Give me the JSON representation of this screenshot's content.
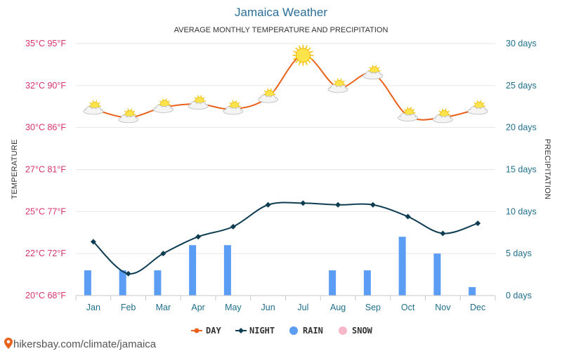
{
  "page": {
    "source_url": "hikersbay.com/climate/jamaica"
  },
  "colors": {
    "day": "#e8611a",
    "night": "#0e3d52",
    "rain": "#5b9cf5",
    "snow": "#f7b7c8",
    "left_axis": "#d6336c",
    "right_axis": "#1f6f8b",
    "title": "#2a6f97"
  },
  "icons": {
    "weather": "sun-behind-cloud-icon",
    "hot": "sun-icon",
    "source": "location-pin-icon"
  },
  "chart_data": {
    "type": "line",
    "title": "Jamaica Weather",
    "subtitle": "AVERAGE MONTHLY TEMPERATURE AND PRECIPITATION",
    "ylabel_left": "TEMPERATURE",
    "ylabel_right": "PRECIPITATION",
    "categories": [
      "Jan",
      "Feb",
      "Mar",
      "Apr",
      "May",
      "Jun",
      "Jul",
      "Aug",
      "Sep",
      "Oct",
      "Nov",
      "Dec"
    ],
    "y_left": {
      "min": 20,
      "max": 35,
      "unit": "°C",
      "ticks": [
        {
          "value": 20,
          "label": "20°C 68°F"
        },
        {
          "value": 22.5,
          "label": "22°C 72°F"
        },
        {
          "value": 25,
          "label": "25°C 77°F"
        },
        {
          "value": 27.5,
          "label": "27°C 81°F"
        },
        {
          "value": 30,
          "label": "30°C 86°F"
        },
        {
          "value": 32.5,
          "label": "32°C 90°F"
        },
        {
          "value": 35,
          "label": "35°C 95°F"
        }
      ]
    },
    "y_right": {
      "min": 0,
      "max": 30,
      "unit": "days",
      "ticks": [
        {
          "value": 0,
          "label": "0 days"
        },
        {
          "value": 5,
          "label": "5 days"
        },
        {
          "value": 10,
          "label": "10 days"
        },
        {
          "value": 15,
          "label": "15 days"
        },
        {
          "value": 20,
          "label": "20 days"
        },
        {
          "value": 25,
          "label": "25 days"
        },
        {
          "value": 30,
          "label": "30 days"
        }
      ]
    },
    "series": [
      {
        "name": "DAY",
        "type": "line",
        "axis": "left",
        "values": [
          31.1,
          30.6,
          31.2,
          31.4,
          31.1,
          31.8,
          34.3,
          32.4,
          33.2,
          30.7,
          30.6,
          31.1
        ]
      },
      {
        "name": "NIGHT",
        "type": "line",
        "axis": "left",
        "values": [
          23.2,
          21.3,
          22.5,
          23.5,
          24.1,
          25.4,
          25.5,
          25.4,
          25.4,
          24.7,
          23.7,
          24.3
        ]
      },
      {
        "name": "RAIN",
        "type": "bar",
        "axis": "right",
        "values": [
          3,
          3,
          3,
          6,
          6,
          0,
          0,
          3,
          3,
          7,
          5,
          1
        ]
      },
      {
        "name": "SNOW",
        "type": "bar",
        "axis": "right",
        "values": [
          0,
          0,
          0,
          0,
          0,
          0,
          0,
          0,
          0,
          0,
          0,
          0
        ]
      }
    ],
    "grid": true,
    "legend_position": "bottom"
  }
}
